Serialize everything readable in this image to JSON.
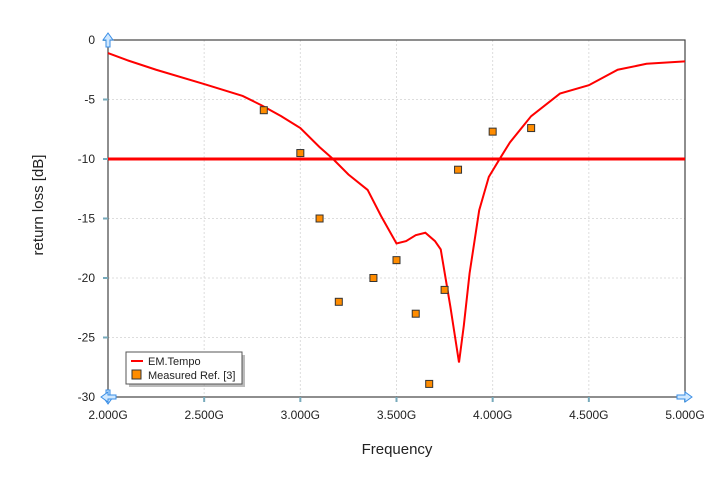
{
  "chart_data": {
    "type": "line",
    "title": "",
    "xlabel": "Frequency",
    "ylabel": "return loss [dB]",
    "xlim": [
      2.0,
      5.0
    ],
    "ylim": [
      -30,
      0
    ],
    "xticks": [
      2.0,
      2.5,
      3.0,
      3.5,
      4.0,
      4.5,
      5.0
    ],
    "xtick_labels": [
      "2.000G",
      "2.500G",
      "3.000G",
      "3.500G",
      "4.000G",
      "4.500G",
      "5.000G"
    ],
    "yticks": [
      0,
      -5,
      -10,
      -15,
      -20,
      -25,
      -30
    ],
    "ytick_labels": [
      "0",
      "-5",
      "-10",
      "-15",
      "-20",
      "-25",
      "-30"
    ],
    "grid": true,
    "legend_placement": "bottom-left",
    "threshold": {
      "y": -10,
      "color": "#ff0000"
    },
    "series": [
      {
        "name": "EM.Tempo",
        "kind": "line",
        "color": "#ff0000",
        "x": [
          2.0,
          2.1,
          2.25,
          2.5,
          2.7,
          2.8,
          2.9,
          3.0,
          3.1,
          3.17,
          3.25,
          3.35,
          3.42,
          3.5,
          3.55,
          3.6,
          3.65,
          3.7,
          3.73,
          3.78,
          3.825,
          3.85,
          3.88,
          3.93,
          3.98,
          4.04,
          4.09,
          4.2,
          4.35,
          4.5,
          4.65,
          4.8,
          5.0
        ],
        "y": [
          -1.1,
          -1.7,
          -2.5,
          -3.7,
          -4.7,
          -5.5,
          -6.4,
          -7.4,
          -9.0,
          -10.0,
          -11.3,
          -12.6,
          -14.8,
          -17.1,
          -16.9,
          -16.4,
          -16.2,
          -16.9,
          -17.6,
          -22.4,
          -27.1,
          -24.0,
          -19.6,
          -14.3,
          -11.5,
          -9.9,
          -8.6,
          -6.4,
          -4.5,
          -3.8,
          -2.5,
          -2.0,
          -1.8
        ]
      },
      {
        "name": "Measured Ref. [3]",
        "kind": "scatter",
        "color": "#ff8c00",
        "x": [
          2.81,
          3.0,
          3.1,
          3.2,
          3.38,
          3.5,
          3.6,
          3.67,
          3.75,
          3.82,
          4.0,
          4.2
        ],
        "y": [
          -5.9,
          -9.5,
          -15.0,
          -22.0,
          -20.0,
          -18.5,
          -23.0,
          -28.9,
          -21.0,
          -10.9,
          -7.7,
          -7.4
        ]
      }
    ]
  }
}
